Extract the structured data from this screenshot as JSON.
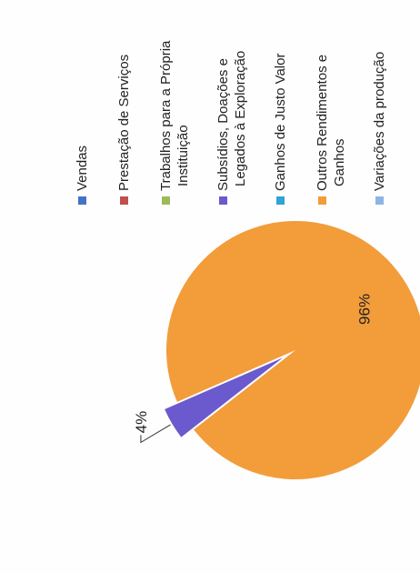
{
  "chart_data": {
    "type": "pie",
    "title": "",
    "categories": [
      "Vendas",
      "Prestação de Serviços",
      "Trabalhos para a Própria Instituição",
      "Subsídios, Doações e Legados à Exploração",
      "Ganhos de Justo Valor",
      "Outros Rendimentos e Ganhos",
      "Variações da produção"
    ],
    "values": [
      0,
      0,
      0,
      4,
      0,
      96,
      0
    ],
    "data_labels": [
      "",
      "",
      "",
      "4%",
      "",
      "96%",
      ""
    ],
    "colors": [
      "#4472c4",
      "#c0504d",
      "#9bbb59",
      "#6a5acd",
      "#31a3d6",
      "#f39c3a",
      "#8fb4e3"
    ],
    "legend_placement": "right",
    "legend": [
      {
        "lines": [
          "Vendas"
        ],
        "color": "#4472c4"
      },
      {
        "lines": [
          "Prestação de Serviços"
        ],
        "color": "#c0504d"
      },
      {
        "lines": [
          "Trabalhos para a Própria",
          "Instituição"
        ],
        "color": "#9bbb59"
      },
      {
        "lines": [
          "Subsídios, Doações e",
          "Legados à Exploração"
        ],
        "color": "#6a5acd"
      },
      {
        "lines": [
          "Ganhos de Justo Valor"
        ],
        "color": "#31a3d6"
      },
      {
        "lines": [
          "Outros Rendimentos e",
          "Ganhos"
        ],
        "color": "#f39c3a"
      },
      {
        "lines": [
          "Variações da produção"
        ],
        "color": "#8fb4e3"
      }
    ]
  }
}
